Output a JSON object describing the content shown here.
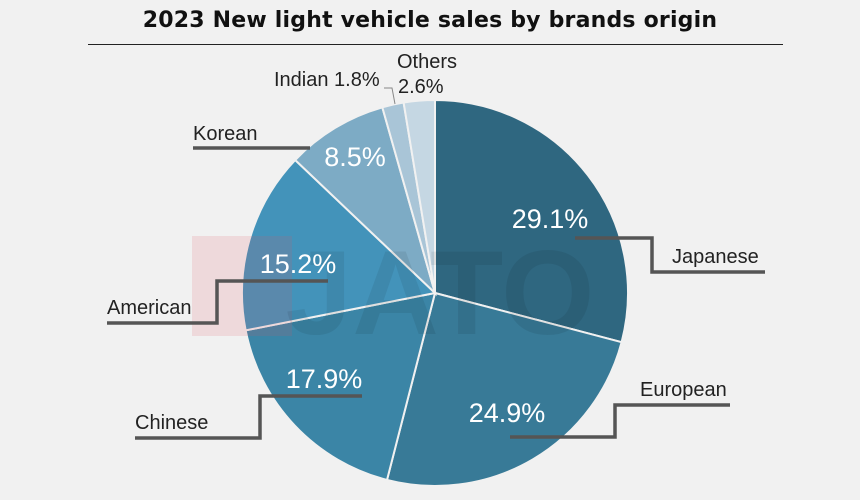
{
  "chart_data": {
    "type": "pie",
    "title": "2023 New light vehicle sales by brands origin",
    "watermark": "JATO",
    "start": "top, clockwise",
    "slices": [
      {
        "label": "Japanese",
        "value": 29.1,
        "value_label": "29.1%",
        "color": "#2f6780"
      },
      {
        "label": "European",
        "value": 24.9,
        "value_label": "24.9%",
        "color": "#387a97"
      },
      {
        "label": "Chinese",
        "value": 17.9,
        "value_label": "17.9%",
        "color": "#3b85a6"
      },
      {
        "label": "American",
        "value": 15.2,
        "value_label": "15.2%",
        "color": "#4393ba"
      },
      {
        "label": "Korean",
        "value": 8.5,
        "value_label": "8.5%",
        "color": "#7dabc5"
      },
      {
        "label": "Indian",
        "value": 1.8,
        "value_label": "Indian 1.8%",
        "color": "#a9c5d7"
      },
      {
        "label": "Others",
        "value": 2.6,
        "value_label": "2.6%",
        "color": "#c5d7e3"
      }
    ]
  }
}
